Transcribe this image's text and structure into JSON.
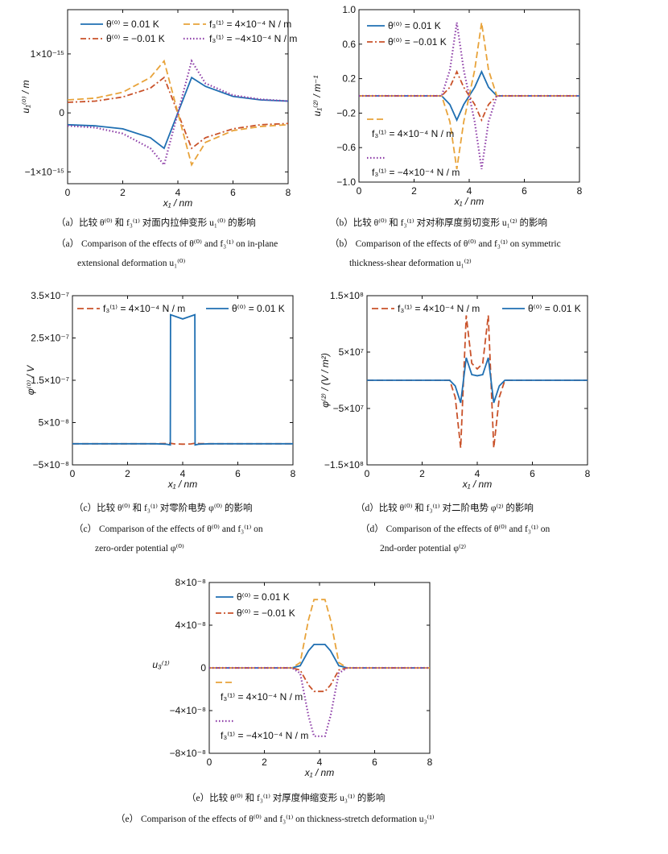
{
  "colors": {
    "blue": "#1f6fb2",
    "orange": "#e8a33a",
    "red": "#c9522a",
    "purple": "#8e3fa8"
  },
  "chart_data": [
    {
      "id": "a",
      "type": "line",
      "ylabel": "u₁⁽⁰⁾ / m",
      "xlabel": "x₁ / nm",
      "xlim": [
        0,
        8
      ],
      "ylim": [
        -1.2e-15,
        1.75e-15
      ],
      "xticks": [
        "0",
        "2",
        "4",
        "6",
        "8"
      ],
      "yticks": [
        {
          "v": 1e-15,
          "label": "1×10⁻¹⁵"
        },
        {
          "v": 0,
          "label": "0"
        },
        {
          "v": -1e-15,
          "label": "−1×10⁻¹⁵"
        }
      ],
      "series": [
        {
          "name": "θ⁽⁰⁾ = 0.01 K",
          "color": "blue",
          "dash": "solid",
          "x": [
            0,
            1,
            2,
            3,
            3.5,
            4,
            4.5,
            5,
            6,
            7,
            8
          ],
          "y": [
            -2e-16,
            -2.2e-16,
            -2.7e-16,
            -4.2e-16,
            -6e-16,
            0,
            6e-16,
            4.5e-16,
            2.8e-16,
            2.2e-16,
            2e-16
          ]
        },
        {
          "name": "θ⁽⁰⁾ = −0.01 K",
          "color": "red",
          "dash": "dashdot",
          "x": [
            0,
            1,
            2,
            3,
            3.5,
            4,
            4.5,
            5,
            6,
            7,
            8
          ],
          "y": [
            1.8e-16,
            2e-16,
            2.7e-16,
            4.2e-16,
            6e-16,
            0,
            -6e-16,
            -4.2e-16,
            -2.7e-16,
            -2e-16,
            -1.8e-16
          ]
        },
        {
          "name": "f₃⁽¹⁾ = 4×10⁻⁴ N / m",
          "color": "orange",
          "dash": "dash",
          "x": [
            0,
            1,
            2,
            3,
            3.5,
            4,
            4.5,
            5,
            6,
            7,
            8
          ],
          "y": [
            2.2e-16,
            2.5e-16,
            3.5e-16,
            6e-16,
            8.8e-16,
            0,
            -8.8e-16,
            -5e-16,
            -3e-16,
            -2.3e-16,
            -2e-16
          ]
        },
        {
          "name": "f₃⁽¹⁾ = −4×10⁻⁴ N / m",
          "color": "purple",
          "dash": "dot",
          "x": [
            0,
            1,
            2,
            3,
            3.5,
            4,
            4.5,
            5,
            6,
            7,
            8
          ],
          "y": [
            -2.2e-16,
            -2.5e-16,
            -3.5e-16,
            -6e-16,
            -8.8e-16,
            0,
            8.8e-16,
            5e-16,
            3e-16,
            2.3e-16,
            2e-16
          ]
        }
      ]
    },
    {
      "id": "b",
      "type": "line",
      "ylabel": "u₁⁽²⁾ / m⁻¹",
      "xlabel": "x₁ / nm",
      "xlim": [
        0,
        8
      ],
      "ylim": [
        -1.0,
        1.0
      ],
      "xticks": [
        "0",
        "2",
        "4",
        "6",
        "8"
      ],
      "yticks": [
        {
          "v": 1.0,
          "label": "1.0"
        },
        {
          "v": 0.6,
          "label": "0.6"
        },
        {
          "v": 0.2,
          "label": "0.2"
        },
        {
          "v": -0.2,
          "label": "−0.2"
        },
        {
          "v": -0.6,
          "label": "−0.6"
        },
        {
          "v": -1.0,
          "label": "−1.0"
        }
      ],
      "series": [
        {
          "name": "θ⁽⁰⁾ = 0.01 K",
          "color": "blue",
          "dash": "solid",
          "x": [
            0,
            3,
            3.3,
            3.55,
            3.8,
            4,
            4.2,
            4.45,
            4.7,
            5,
            8
          ],
          "y": [
            0,
            0,
            -0.1,
            -0.28,
            -0.1,
            0,
            0.1,
            0.28,
            0.1,
            0,
            0
          ]
        },
        {
          "name": "θ⁽⁰⁾ = −0.01 K",
          "color": "red",
          "dash": "dashdot",
          "x": [
            0,
            3,
            3.3,
            3.55,
            3.8,
            4,
            4.2,
            4.45,
            4.7,
            5,
            8
          ],
          "y": [
            0,
            0,
            0.1,
            0.28,
            0.1,
            0,
            -0.1,
            -0.28,
            -0.1,
            0,
            0
          ]
        },
        {
          "name": "f₃⁽¹⁾ = 4×10⁻⁴ N / m",
          "color": "orange",
          "dash": "dash",
          "x": [
            0,
            3,
            3.3,
            3.55,
            3.8,
            4,
            4.2,
            4.45,
            4.7,
            5,
            8
          ],
          "y": [
            0,
            0,
            -0.3,
            -0.85,
            -0.3,
            0,
            0.3,
            0.85,
            0.3,
            0,
            0
          ]
        },
        {
          "name": "f₃⁽¹⁾ = −4×10⁻⁴ N / m",
          "color": "purple",
          "dash": "dot",
          "x": [
            0,
            3,
            3.3,
            3.55,
            3.8,
            4,
            4.2,
            4.45,
            4.7,
            5,
            8
          ],
          "y": [
            0,
            0,
            0.3,
            0.85,
            0.3,
            0,
            -0.3,
            -0.85,
            -0.3,
            0,
            0
          ]
        }
      ]
    },
    {
      "id": "c",
      "type": "line",
      "ylabel": "φ⁽⁰⁾ / V",
      "xlabel": "x₁ / nm",
      "xlim": [
        0,
        8
      ],
      "ylim": [
        -5e-08,
        3.5e-07
      ],
      "xticks": [
        "0",
        "2",
        "4",
        "6",
        "8"
      ],
      "yticks": [
        {
          "v": 3.5e-07,
          "label": "3.5×10⁻⁷"
        },
        {
          "v": 2.5e-07,
          "label": "2.5×10⁻⁷"
        },
        {
          "v": 1.5e-07,
          "label": "1.5×10⁻⁷"
        },
        {
          "v": 5e-08,
          "label": "5×10⁻⁸"
        },
        {
          "v": -5e-08,
          "label": "−5×10⁻⁸"
        }
      ],
      "series": [
        {
          "name": "f₃⁽¹⁾ = 4×10⁻⁴ N / m",
          "color": "red",
          "dash": "dash",
          "x": [
            0,
            3,
            3.4,
            3.55,
            3.7,
            4,
            4.3,
            4.45,
            4.6,
            5,
            8
          ],
          "y": [
            0,
            0,
            5e-10,
            1e-09,
            -5e-10,
            -1e-09,
            -5e-10,
            1e-09,
            5e-10,
            0,
            0
          ]
        },
        {
          "name": "θ⁽⁰⁾ = 0.01 K",
          "color": "blue",
          "dash": "solid",
          "x": [
            0,
            3,
            3.4,
            3.55,
            3.56,
            4,
            4.44,
            4.45,
            4.6,
            5,
            8
          ],
          "y": [
            0,
            0,
            -1e-09,
            -3e-09,
            3.05e-07,
            2.95e-07,
            3.05e-07,
            -3e-09,
            -1e-09,
            0,
            0
          ]
        }
      ]
    },
    {
      "id": "d",
      "type": "line",
      "ylabel": "φ⁽²⁾ / (V / m²)",
      "xlabel": "x₁ / nm",
      "xlim": [
        0,
        8
      ],
      "ylim": [
        -150000000.0,
        150000000.0
      ],
      "xticks": [
        "0",
        "2",
        "4",
        "6",
        "8"
      ],
      "yticks": [
        {
          "v": 150000000.0,
          "label": "1.5×10⁸"
        },
        {
          "v": 50000000.0,
          "label": "5×10⁷"
        },
        {
          "v": -50000000.0,
          "label": "−5×10⁷"
        },
        {
          "v": -150000000.0,
          "label": "−1.5×10⁸"
        }
      ],
      "series": [
        {
          "name": "f₃⁽¹⁾ = 4×10⁻⁴ N / m",
          "color": "red",
          "dash": "dash",
          "x": [
            0,
            3,
            3.2,
            3.4,
            3.6,
            3.8,
            4,
            4.2,
            4.4,
            4.6,
            4.8,
            5,
            8
          ],
          "y": [
            0,
            0,
            -30000000.0,
            -120000000.0,
            115000000.0,
            30000000.0,
            20000000.0,
            30000000.0,
            115000000.0,
            -120000000.0,
            -30000000.0,
            0,
            0
          ]
        },
        {
          "name": "θ⁽⁰⁾ = 0.01 K",
          "color": "blue",
          "dash": "solid",
          "x": [
            0,
            3,
            3.2,
            3.4,
            3.6,
            3.8,
            4,
            4.2,
            4.4,
            4.6,
            4.8,
            5,
            8
          ],
          "y": [
            0,
            0,
            -10000000.0,
            -40000000.0,
            40000000.0,
            10000000.0,
            8000000.0,
            10000000.0,
            40000000.0,
            -40000000.0,
            -10000000.0,
            0,
            0
          ]
        }
      ]
    },
    {
      "id": "e",
      "type": "line",
      "ylabel": "u₃⁽¹⁾",
      "xlabel": "x₁ / nm",
      "xlim": [
        0,
        8
      ],
      "ylim": [
        -8e-08,
        8e-08
      ],
      "xticks": [
        "0",
        "2",
        "4",
        "6",
        "8"
      ],
      "yticks": [
        {
          "v": 8e-08,
          "label": "8×10⁻⁸"
        },
        {
          "v": 4e-08,
          "label": "4×10⁻⁸"
        },
        {
          "v": 0,
          "label": "0"
        },
        {
          "v": -4e-08,
          "label": "−4×10⁻⁸"
        },
        {
          "v": -8e-08,
          "label": "−8×10⁻⁸"
        }
      ],
      "series": [
        {
          "name": "θ⁽⁰⁾ = 0.01 K",
          "color": "blue",
          "dash": "solid",
          "x": [
            0,
            3,
            3.3,
            3.6,
            3.8,
            4,
            4.2,
            4.4,
            4.7,
            5,
            8
          ],
          "y": [
            0,
            0,
            2e-09,
            1.6e-08,
            2.2e-08,
            2.2e-08,
            2.2e-08,
            1.6e-08,
            2e-09,
            0,
            0
          ]
        },
        {
          "name": "θ⁽⁰⁾ = −0.01 K",
          "color": "red",
          "dash": "dashdot",
          "x": [
            0,
            3,
            3.3,
            3.6,
            3.8,
            4,
            4.2,
            4.4,
            4.7,
            5,
            8
          ],
          "y": [
            0,
            0,
            -2e-09,
            -1.6e-08,
            -2.2e-08,
            -2.2e-08,
            -2.2e-08,
            -1.6e-08,
            -2e-09,
            0,
            0
          ]
        },
        {
          "name": "f₃⁽¹⁾ = 4×10⁻⁴ N / m",
          "color": "orange",
          "dash": "dash",
          "x": [
            0,
            3,
            3.3,
            3.6,
            3.8,
            4,
            4.2,
            4.4,
            4.7,
            5,
            8
          ],
          "y": [
            0,
            0,
            5e-09,
            4.5e-08,
            6.4e-08,
            6.4e-08,
            6.4e-08,
            4.5e-08,
            5e-09,
            0,
            0
          ]
        },
        {
          "name": "f₃⁽¹⁾ = −4×10⁻⁴ N / m",
          "color": "purple",
          "dash": "dot",
          "x": [
            0,
            3,
            3.3,
            3.6,
            3.8,
            4,
            4.2,
            4.4,
            4.7,
            5,
            8
          ],
          "y": [
            0,
            0,
            -5e-09,
            -4.5e-08,
            -6.4e-08,
            -6.4e-08,
            -6.4e-08,
            -4.5e-08,
            -5e-09,
            0,
            0
          ]
        }
      ]
    }
  ],
  "captions": {
    "a_cn": "（a）比较 θ⁽⁰⁾ 和 f₃⁽¹⁾ 对面内拉伸变形 u₁⁽⁰⁾ 的影响",
    "a_en1": "（a） Comparison of the effects of θ⁽⁰⁾ and f₃⁽¹⁾ on in-plane",
    "a_en2": "extensional deformation u₁⁽⁰⁾",
    "b_cn": "（b）比较 θ⁽⁰⁾ 和 f₃⁽¹⁾ 对对称厚度剪切变形 u₁⁽²⁾ 的影响",
    "b_en1": "（b） Comparison of the effects of θ⁽⁰⁾ and f₃⁽¹⁾ on symmetric",
    "b_en2": "thickness-shear deformation u₁⁽²⁾",
    "c_cn": "（c）比较 θ⁽⁰⁾ 和 f₃⁽¹⁾ 对零阶电势 φ⁽⁰⁾ 的影响",
    "c_en1": "（c） Comparison of the effects of θ⁽⁰⁾ and f₃⁽¹⁾ on",
    "c_en2": "zero-order potential φ⁽⁰⁾",
    "d_cn": "（d）比较 θ⁽⁰⁾ 和 f₃⁽¹⁾ 对二阶电势 φ⁽²⁾ 的影响",
    "d_en1": "（d） Comparison of the effects of θ⁽⁰⁾ and f₃⁽¹⁾ on",
    "d_en2": "2nd-order potential φ⁽²⁾",
    "e_cn": "（e）比较 θ⁽⁰⁾ 和 f₃⁽¹⁾ 对厚度伸缩变形 u₃⁽¹⁾ 的影响",
    "e_en1": "（e） Comparison of the effects of θ⁽⁰⁾ and f₃⁽¹⁾ on thickness-stretch deformation u₃⁽¹⁾"
  }
}
